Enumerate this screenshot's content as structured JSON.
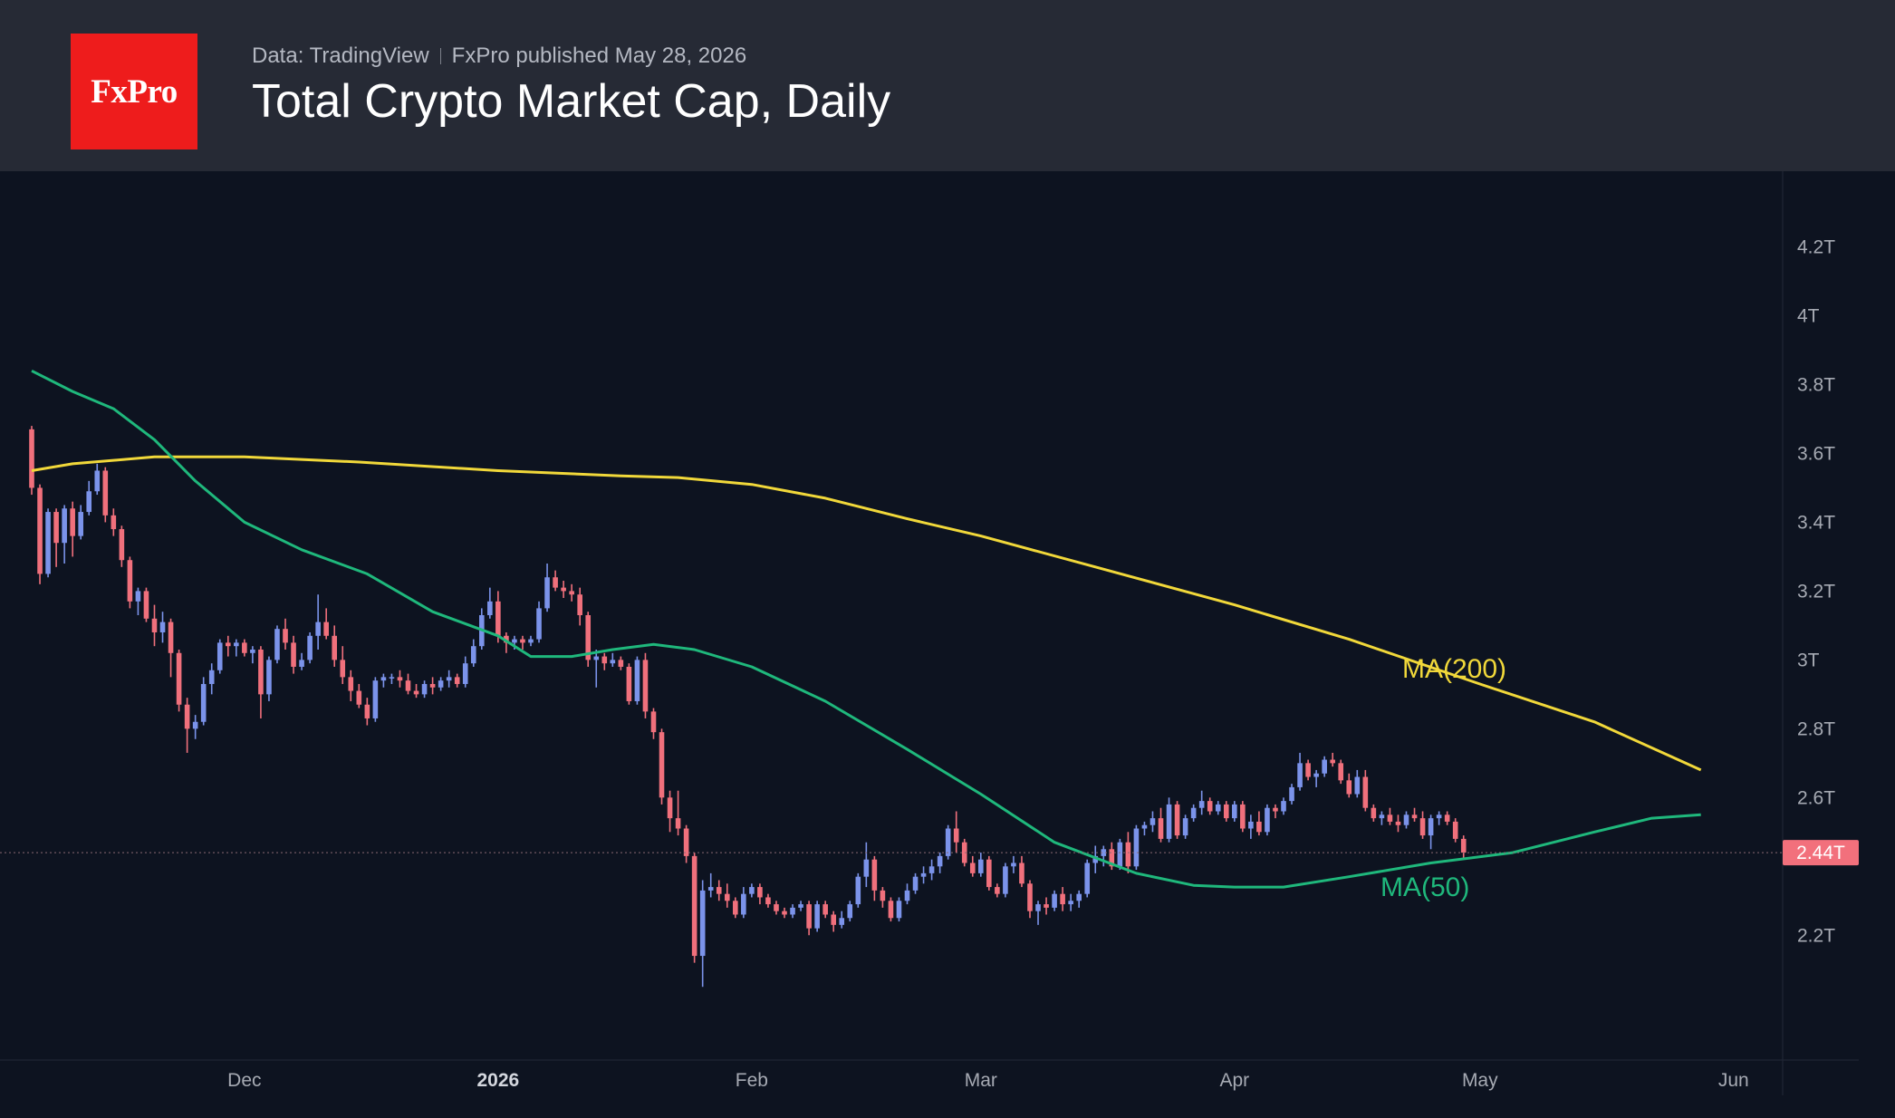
{
  "header": {
    "logo_text": "FxPro",
    "source": "Data: TradingView",
    "published": "FxPro published May 28, 2026",
    "title": "Total Crypto Market Cap, Daily"
  },
  "colors": {
    "header_bg": "#262a35",
    "chart_bg": "#0d1320",
    "logo_red": "#ee1c1c",
    "candle_up": "#7b93ea",
    "candle_down": "#f0707c",
    "ma200": "#f1d83a",
    "ma50": "#1fb87c",
    "price_tag": "#f2707c"
  },
  "chart_data": {
    "type": "candlestick",
    "y_unit": "Trillion USD",
    "ylim": [
      1.84,
      4.42
    ],
    "y_ticks": [
      2.2,
      2.6,
      2.8,
      3.0,
      3.2,
      3.4,
      3.6,
      3.8,
      4.0,
      4.2
    ],
    "y_tick_labels": [
      "2.2T",
      "2.6T",
      "2.8T",
      "3T",
      "3.2T",
      "3.4T",
      "3.6T",
      "3.8T",
      "4T",
      "4.2T"
    ],
    "x_range": [
      "2025-11-05",
      "2026-06-07"
    ],
    "x_ticks": [
      {
        "date": "2025-12-01",
        "label": "Dec",
        "bold": false
      },
      {
        "date": "2026-01-01",
        "label": "2026",
        "bold": true
      },
      {
        "date": "2026-02-01",
        "label": "Feb",
        "bold": false
      },
      {
        "date": "2026-03-01",
        "label": "Mar",
        "bold": false
      },
      {
        "date": "2026-04-01",
        "label": "Apr",
        "bold": false
      },
      {
        "date": "2026-05-01",
        "label": "May",
        "bold": false
      },
      {
        "date": "2026-06-01",
        "label": "Jun",
        "bold": false
      }
    ],
    "current_price": 2.44,
    "current_price_label": "2.44T",
    "candle_start_date": "2025-11-05",
    "candles": [
      [
        3.67,
        3.68,
        3.48,
        3.5
      ],
      [
        3.5,
        3.51,
        3.22,
        3.25
      ],
      [
        3.25,
        3.44,
        3.24,
        3.43
      ],
      [
        3.43,
        3.44,
        3.27,
        3.34
      ],
      [
        3.34,
        3.45,
        3.28,
        3.44
      ],
      [
        3.44,
        3.46,
        3.3,
        3.36
      ],
      [
        3.36,
        3.45,
        3.35,
        3.43
      ],
      [
        3.43,
        3.52,
        3.42,
        3.49
      ],
      [
        3.49,
        3.57,
        3.48,
        3.55
      ],
      [
        3.55,
        3.56,
        3.4,
        3.42
      ],
      [
        3.42,
        3.44,
        3.36,
        3.38
      ],
      [
        3.38,
        3.39,
        3.27,
        3.29
      ],
      [
        3.29,
        3.3,
        3.15,
        3.17
      ],
      [
        3.17,
        3.21,
        3.13,
        3.2
      ],
      [
        3.2,
        3.21,
        3.11,
        3.12
      ],
      [
        3.12,
        3.16,
        3.04,
        3.08
      ],
      [
        3.08,
        3.14,
        3.05,
        3.11
      ],
      [
        3.11,
        3.12,
        2.95,
        3.02
      ],
      [
        3.02,
        3.03,
        2.85,
        2.87
      ],
      [
        2.87,
        2.89,
        2.73,
        2.8
      ],
      [
        2.8,
        2.84,
        2.77,
        2.82
      ],
      [
        2.82,
        2.95,
        2.81,
        2.93
      ],
      [
        2.93,
        2.99,
        2.9,
        2.97
      ],
      [
        2.97,
        3.06,
        2.96,
        3.05
      ],
      [
        3.05,
        3.07,
        3.01,
        3.04
      ],
      [
        3.04,
        3.06,
        3.01,
        3.05
      ],
      [
        3.05,
        3.06,
        3.01,
        3.02
      ],
      [
        3.02,
        3.04,
        2.99,
        3.03
      ],
      [
        3.03,
        3.04,
        2.83,
        2.9
      ],
      [
        2.9,
        3.01,
        2.88,
        3.0
      ],
      [
        3.0,
        3.1,
        2.99,
        3.09
      ],
      [
        3.09,
        3.12,
        3.03,
        3.05
      ],
      [
        3.05,
        3.07,
        2.96,
        2.98
      ],
      [
        2.98,
        3.02,
        2.97,
        3.0
      ],
      [
        3.0,
        3.08,
        2.99,
        3.07
      ],
      [
        3.07,
        3.19,
        3.03,
        3.11
      ],
      [
        3.11,
        3.15,
        3.06,
        3.07
      ],
      [
        3.07,
        3.1,
        2.98,
        3.0
      ],
      [
        3.0,
        3.04,
        2.93,
        2.95
      ],
      [
        2.95,
        2.97,
        2.88,
        2.91
      ],
      [
        2.91,
        2.93,
        2.86,
        2.87
      ],
      [
        2.87,
        2.89,
        2.81,
        2.83
      ],
      [
        2.83,
        2.95,
        2.82,
        2.94
      ],
      [
        2.94,
        2.96,
        2.92,
        2.95
      ],
      [
        2.95,
        2.96,
        2.93,
        2.95
      ],
      [
        2.95,
        2.97,
        2.92,
        2.94
      ],
      [
        2.94,
        2.96,
        2.9,
        2.91
      ],
      [
        2.91,
        2.93,
        2.89,
        2.9
      ],
      [
        2.9,
        2.94,
        2.89,
        2.93
      ],
      [
        2.93,
        2.95,
        2.9,
        2.92
      ],
      [
        2.92,
        2.95,
        2.91,
        2.94
      ],
      [
        2.94,
        2.97,
        2.92,
        2.95
      ],
      [
        2.95,
        2.96,
        2.92,
        2.93
      ],
      [
        2.93,
        3.01,
        2.92,
        2.99
      ],
      [
        2.99,
        3.06,
        2.98,
        3.04
      ],
      [
        3.04,
        3.15,
        3.03,
        3.13
      ],
      [
        3.13,
        3.21,
        3.12,
        3.17
      ],
      [
        3.17,
        3.2,
        3.05,
        3.07
      ],
      [
        3.07,
        3.08,
        3.02,
        3.05
      ],
      [
        3.05,
        3.07,
        3.03,
        3.06
      ],
      [
        3.06,
        3.07,
        3.03,
        3.05
      ],
      [
        3.05,
        3.07,
        3.04,
        3.06
      ],
      [
        3.06,
        3.17,
        3.05,
        3.15
      ],
      [
        3.15,
        3.28,
        3.14,
        3.24
      ],
      [
        3.24,
        3.26,
        3.2,
        3.21
      ],
      [
        3.21,
        3.23,
        3.18,
        3.2
      ],
      [
        3.2,
        3.22,
        3.17,
        3.19
      ],
      [
        3.19,
        3.21,
        3.1,
        3.13
      ],
      [
        3.13,
        3.14,
        2.98,
        3.0
      ],
      [
        3.0,
        3.03,
        2.92,
        3.01
      ],
      [
        3.01,
        3.02,
        2.97,
        2.99
      ],
      [
        2.99,
        3.02,
        2.98,
        3.0
      ],
      [
        3.0,
        3.01,
        2.97,
        2.98
      ],
      [
        2.98,
        2.99,
        2.87,
        2.88
      ],
      [
        2.88,
        3.01,
        2.87,
        3.0
      ],
      [
        3.0,
        3.02,
        2.83,
        2.85
      ],
      [
        2.85,
        2.86,
        2.77,
        2.79
      ],
      [
        2.79,
        2.8,
        2.58,
        2.6
      ],
      [
        2.6,
        2.62,
        2.5,
        2.54
      ],
      [
        2.54,
        2.62,
        2.49,
        2.51
      ],
      [
        2.51,
        2.52,
        2.41,
        2.43
      ],
      [
        2.43,
        2.44,
        2.12,
        2.14
      ],
      [
        2.14,
        2.36,
        2.05,
        2.33
      ],
      [
        2.33,
        2.38,
        2.31,
        2.34
      ],
      [
        2.34,
        2.36,
        2.3,
        2.32
      ],
      [
        2.32,
        2.35,
        2.28,
        2.3
      ],
      [
        2.3,
        2.31,
        2.25,
        2.26
      ],
      [
        2.26,
        2.34,
        2.25,
        2.32
      ],
      [
        2.32,
        2.35,
        2.31,
        2.34
      ],
      [
        2.34,
        2.35,
        2.29,
        2.31
      ],
      [
        2.31,
        2.32,
        2.28,
        2.29
      ],
      [
        2.29,
        2.3,
        2.26,
        2.27
      ],
      [
        2.27,
        2.28,
        2.25,
        2.26
      ],
      [
        2.26,
        2.29,
        2.25,
        2.28
      ],
      [
        2.28,
        2.3,
        2.27,
        2.29
      ],
      [
        2.29,
        2.3,
        2.2,
        2.22
      ],
      [
        2.22,
        2.3,
        2.21,
        2.29
      ],
      [
        2.29,
        2.3,
        2.25,
        2.26
      ],
      [
        2.26,
        2.27,
        2.21,
        2.23
      ],
      [
        2.23,
        2.27,
        2.22,
        2.25
      ],
      [
        2.25,
        2.3,
        2.24,
        2.29
      ],
      [
        2.29,
        2.38,
        2.28,
        2.37
      ],
      [
        2.37,
        2.47,
        2.34,
        2.42
      ],
      [
        2.42,
        2.43,
        2.3,
        2.33
      ],
      [
        2.33,
        2.34,
        2.28,
        2.3
      ],
      [
        2.3,
        2.31,
        2.24,
        2.25
      ],
      [
        2.25,
        2.31,
        2.24,
        2.3
      ],
      [
        2.3,
        2.35,
        2.29,
        2.33
      ],
      [
        2.33,
        2.38,
        2.32,
        2.37
      ],
      [
        2.37,
        2.4,
        2.35,
        2.38
      ],
      [
        2.38,
        2.42,
        2.36,
        2.4
      ],
      [
        2.4,
        2.44,
        2.38,
        2.43
      ],
      [
        2.43,
        2.52,
        2.42,
        2.51
      ],
      [
        2.51,
        2.56,
        2.44,
        2.47
      ],
      [
        2.47,
        2.48,
        2.4,
        2.41
      ],
      [
        2.41,
        2.43,
        2.37,
        2.38
      ],
      [
        2.38,
        2.44,
        2.37,
        2.42
      ],
      [
        2.42,
        2.43,
        2.33,
        2.34
      ],
      [
        2.34,
        2.35,
        2.31,
        2.32
      ],
      [
        2.32,
        2.41,
        2.31,
        2.4
      ],
      [
        2.4,
        2.43,
        2.38,
        2.41
      ],
      [
        2.41,
        2.43,
        2.34,
        2.35
      ],
      [
        2.35,
        2.36,
        2.25,
        2.27
      ],
      [
        2.27,
        2.3,
        2.23,
        2.29
      ],
      [
        2.29,
        2.31,
        2.26,
        2.28
      ],
      [
        2.28,
        2.33,
        2.27,
        2.32
      ],
      [
        2.32,
        2.34,
        2.27,
        2.29
      ],
      [
        2.29,
        2.32,
        2.27,
        2.3
      ],
      [
        2.3,
        2.33,
        2.28,
        2.32
      ],
      [
        2.32,
        2.42,
        2.31,
        2.41
      ],
      [
        2.41,
        2.46,
        2.38,
        2.43
      ],
      [
        2.43,
        2.46,
        2.4,
        2.45
      ],
      [
        2.45,
        2.47,
        2.39,
        2.4
      ],
      [
        2.4,
        2.48,
        2.39,
        2.47
      ],
      [
        2.47,
        2.5,
        2.38,
        2.4
      ],
      [
        2.4,
        2.52,
        2.39,
        2.51
      ],
      [
        2.51,
        2.53,
        2.49,
        2.52
      ],
      [
        2.52,
        2.56,
        2.5,
        2.54
      ],
      [
        2.54,
        2.57,
        2.47,
        2.48
      ],
      [
        2.48,
        2.6,
        2.47,
        2.58
      ],
      [
        2.58,
        2.59,
        2.48,
        2.49
      ],
      [
        2.49,
        2.55,
        2.48,
        2.54
      ],
      [
        2.54,
        2.58,
        2.53,
        2.57
      ],
      [
        2.57,
        2.62,
        2.55,
        2.59
      ],
      [
        2.59,
        2.6,
        2.55,
        2.56
      ],
      [
        2.56,
        2.59,
        2.55,
        2.58
      ],
      [
        2.58,
        2.59,
        2.53,
        2.54
      ],
      [
        2.54,
        2.59,
        2.53,
        2.58
      ],
      [
        2.58,
        2.59,
        2.5,
        2.51
      ],
      [
        2.51,
        2.55,
        2.48,
        2.53
      ],
      [
        2.53,
        2.56,
        2.49,
        2.5
      ],
      [
        2.5,
        2.58,
        2.49,
        2.57
      ],
      [
        2.57,
        2.58,
        2.54,
        2.56
      ],
      [
        2.56,
        2.6,
        2.55,
        2.59
      ],
      [
        2.59,
        2.64,
        2.58,
        2.63
      ],
      [
        2.63,
        2.73,
        2.62,
        2.7
      ],
      [
        2.7,
        2.71,
        2.65,
        2.66
      ],
      [
        2.66,
        2.68,
        2.63,
        2.67
      ],
      [
        2.67,
        2.72,
        2.66,
        2.71
      ],
      [
        2.71,
        2.73,
        2.69,
        2.7
      ],
      [
        2.7,
        2.71,
        2.64,
        2.65
      ],
      [
        2.65,
        2.67,
        2.6,
        2.61
      ],
      [
        2.61,
        2.68,
        2.6,
        2.66
      ],
      [
        2.66,
        2.68,
        2.56,
        2.57
      ],
      [
        2.57,
        2.58,
        2.53,
        2.54
      ],
      [
        2.54,
        2.56,
        2.52,
        2.55
      ],
      [
        2.55,
        2.57,
        2.52,
        2.53
      ],
      [
        2.53,
        2.55,
        2.5,
        2.52
      ],
      [
        2.52,
        2.56,
        2.51,
        2.55
      ],
      [
        2.55,
        2.57,
        2.53,
        2.54
      ],
      [
        2.54,
        2.56,
        2.48,
        2.49
      ],
      [
        2.49,
        2.55,
        2.45,
        2.54
      ],
      [
        2.54,
        2.56,
        2.52,
        2.55
      ],
      [
        2.55,
        2.56,
        2.52,
        2.53
      ],
      [
        2.53,
        2.54,
        2.47,
        2.48
      ],
      [
        2.48,
        2.49,
        2.42,
        2.44
      ]
    ],
    "series": [
      {
        "name": "MA(200)",
        "points": [
          [
            "2025-11-05",
            3.55
          ],
          [
            "2025-11-10",
            3.57
          ],
          [
            "2025-11-20",
            3.59
          ],
          [
            "2025-12-01",
            3.59
          ],
          [
            "2025-12-15",
            3.575
          ],
          [
            "2026-01-01",
            3.55
          ],
          [
            "2026-01-16",
            3.535
          ],
          [
            "2026-01-23",
            3.53
          ],
          [
            "2026-02-01",
            3.51
          ],
          [
            "2026-02-10",
            3.47
          ],
          [
            "2026-02-20",
            3.41
          ],
          [
            "2026-03-01",
            3.36
          ],
          [
            "2026-03-15",
            3.27
          ],
          [
            "2026-04-01",
            3.16
          ],
          [
            "2026-04-15",
            3.06
          ],
          [
            "2026-05-01",
            2.93
          ],
          [
            "2026-05-15",
            2.82
          ],
          [
            "2026-05-28",
            2.68
          ]
        ]
      },
      {
        "name": "MA(50)",
        "points": [
          [
            "2025-11-05",
            3.84
          ],
          [
            "2025-11-10",
            3.78
          ],
          [
            "2025-11-15",
            3.73
          ],
          [
            "2025-11-20",
            3.64
          ],
          [
            "2025-11-25",
            3.52
          ],
          [
            "2025-12-01",
            3.4
          ],
          [
            "2025-12-08",
            3.32
          ],
          [
            "2025-12-16",
            3.25
          ],
          [
            "2025-12-24",
            3.14
          ],
          [
            "2026-01-01",
            3.07
          ],
          [
            "2026-01-05",
            3.01
          ],
          [
            "2026-01-10",
            3.01
          ],
          [
            "2026-01-15",
            3.03
          ],
          [
            "2026-01-20",
            3.045
          ],
          [
            "2026-01-25",
            3.03
          ],
          [
            "2026-02-01",
            2.98
          ],
          [
            "2026-02-10",
            2.88
          ],
          [
            "2026-02-20",
            2.74
          ],
          [
            "2026-03-01",
            2.61
          ],
          [
            "2026-03-10",
            2.47
          ],
          [
            "2026-03-20",
            2.38
          ],
          [
            "2026-03-27",
            2.345
          ],
          [
            "2026-04-01",
            2.34
          ],
          [
            "2026-04-07",
            2.34
          ],
          [
            "2026-04-15",
            2.37
          ],
          [
            "2026-04-25",
            2.41
          ],
          [
            "2026-05-05",
            2.44
          ],
          [
            "2026-05-15",
            2.5
          ],
          [
            "2026-05-22",
            2.54
          ],
          [
            "2026-05-28",
            2.55
          ]
        ]
      }
    ]
  }
}
